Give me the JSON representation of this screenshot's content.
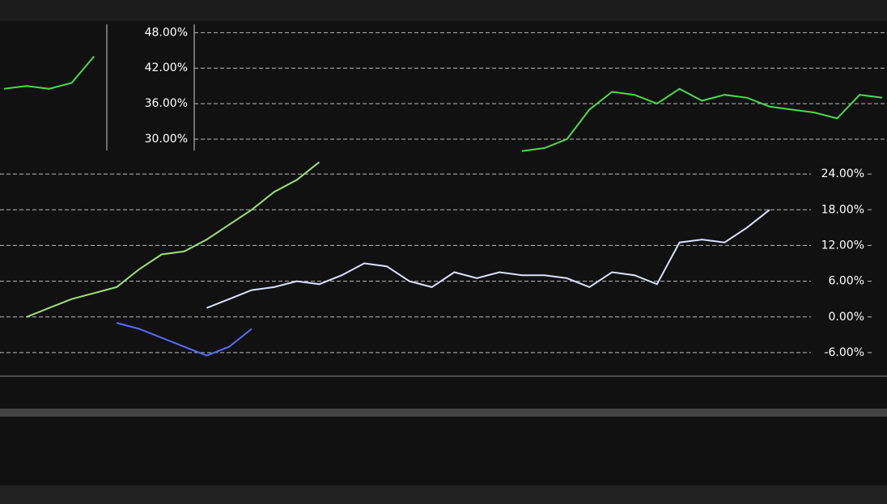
{
  "chart_data": [
    {
      "type": "line",
      "categories": [
        null,
        null,
        null,
        null,
        null,
        null,
        null,
        null,
        null,
        null,
        null,
        null,
        null,
        null,
        null,
        null,
        null,
        null,
        null,
        null,
        null,
        null,
        null,
        null,
        null,
        null,
        null,
        null,
        null,
        null,
        null,
        null,
        null,
        null,
        null,
        null,
        null,
        null,
        null,
        null
      ],
      "series": [
        {
          "color": "#4cd94c",
          "values": [
            38.5,
            39,
            38.5,
            39.5,
            44,
            null,
            null,
            null,
            null,
            null,
            null,
            null,
            null,
            null,
            null,
            null,
            null,
            null,
            null,
            null,
            null,
            null,
            null,
            28,
            28.5,
            30,
            35,
            38,
            37.5,
            36,
            38.5,
            36.5,
            37.5,
            37,
            35.5,
            35,
            34.5,
            33.5,
            37.5,
            37
          ]
        }
      ],
      "ylim": [
        27,
        49
      ],
      "yticks": [
        {
          "value": 48,
          "label": "48.00%"
        },
        {
          "value": 42,
          "label": "42.00%"
        },
        {
          "value": 36,
          "label": "36.00%"
        },
        {
          "value": 30,
          "label": "30.00%"
        }
      ],
      "grid": true
    },
    {
      "type": "line",
      "categories": [
        null,
        null,
        null,
        null,
        null,
        null,
        null,
        null,
        null,
        null,
        null,
        null,
        null,
        null,
        null,
        null,
        null,
        null,
        null,
        null,
        null,
        null,
        null,
        null,
        null,
        null,
        null,
        null,
        null,
        null,
        null,
        null,
        null,
        null,
        null,
        null,
        null,
        null,
        null,
        null
      ],
      "series": [
        {
          "color": "#9fe07a",
          "values": [
            null,
            0,
            1.5,
            3,
            4,
            5,
            8,
            10.5,
            11,
            13,
            15.5,
            18,
            21,
            23,
            26,
            null,
            null,
            null,
            null,
            null,
            null,
            null,
            null,
            null,
            null,
            null,
            null,
            null,
            null,
            null,
            null,
            null,
            null,
            null,
            null,
            null,
            null,
            null,
            null,
            null
          ]
        },
        {
          "color": "#5a6cff",
          "values": [
            null,
            null,
            null,
            null,
            null,
            -1,
            -2,
            -3.5,
            -5,
            -6.5,
            -5,
            -2,
            null,
            null,
            null,
            null,
            null,
            null,
            null,
            null,
            null,
            null,
            null,
            null,
            null,
            null,
            null,
            null,
            null,
            null,
            null,
            null,
            null,
            null,
            null,
            null,
            null,
            null,
            null,
            null
          ]
        },
        {
          "color": "#dde0ff",
          "values": [
            null,
            null,
            null,
            null,
            null,
            null,
            null,
            null,
            null,
            1.5,
            3,
            4.5,
            5,
            6,
            5.5,
            7,
            9,
            8.5,
            6,
            5,
            7.5,
            6.5,
            7.5,
            7,
            7,
            6.5,
            5,
            7.5,
            7,
            5.5,
            12.5,
            13,
            12.5,
            15,
            18,
            null,
            null,
            null,
            null,
            null
          ]
        }
      ],
      "ylim": [
        -9,
        27
      ],
      "yticks": [
        {
          "value": 24,
          "label": "24.00%"
        },
        {
          "value": 18,
          "label": "18.00%"
        },
        {
          "value": 12,
          "label": "12.00%"
        },
        {
          "value": 6,
          "label": "6.00%"
        },
        {
          "value": 0,
          "label": "0.00%"
        },
        {
          "value": -6,
          "label": "-6.00%"
        }
      ],
      "grid": true
    }
  ]
}
